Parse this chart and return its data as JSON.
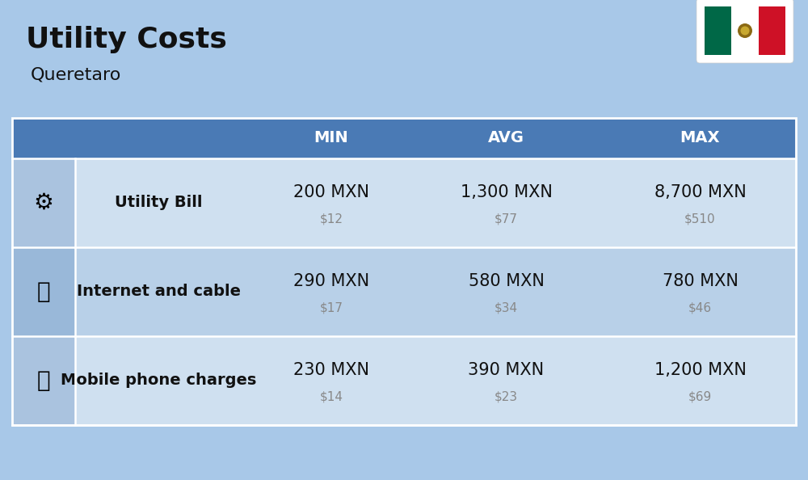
{
  "title": "Utility Costs",
  "subtitle": "Queretaro",
  "background_color": "#a8c8e8",
  "header_bg_color": "#4a7ab5",
  "header_text_color": "#ffffff",
  "row_bg_color_1": "#cfe0f0",
  "row_bg_color_2": "#b8d0e8",
  "rows": [
    {
      "label": "Utility Bill",
      "min_mxn": "200 MXN",
      "min_usd": "$12",
      "avg_mxn": "1,300 MXN",
      "avg_usd": "$77",
      "max_mxn": "8,700 MXN",
      "max_usd": "$510"
    },
    {
      "label": "Internet and cable",
      "min_mxn": "290 MXN",
      "min_usd": "$17",
      "avg_mxn": "580 MXN",
      "avg_usd": "$34",
      "max_mxn": "780 MXN",
      "max_usd": "$46"
    },
    {
      "label": "Mobile phone charges",
      "min_mxn": "230 MXN",
      "min_usd": "$14",
      "avg_mxn": "390 MXN",
      "avg_usd": "$23",
      "max_mxn": "1,200 MXN",
      "max_usd": "$69"
    }
  ],
  "mxn_fontsize": 15,
  "usd_fontsize": 11,
  "label_fontsize": 14,
  "header_fontsize": 14,
  "flag_green": "#006847",
  "flag_white": "#ffffff",
  "flag_red": "#ce1126"
}
